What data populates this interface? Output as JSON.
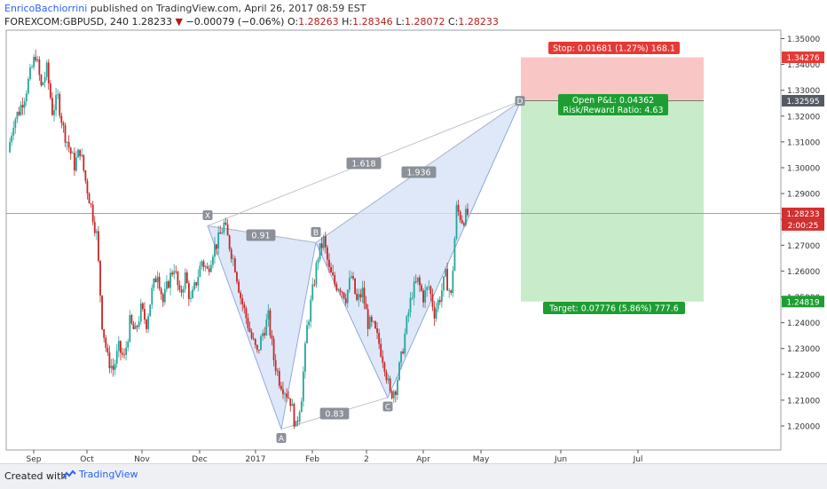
{
  "header": {
    "author": "EnricoBachiorrini",
    "published_text": "published on TradingView.com, April 26, 2017 08:59 EST",
    "symbol": "FOREXCOM:GBPUSD, 240",
    "last_price": "1.28233",
    "change": "−0.00079 (−0.06%)",
    "open_label": "O:",
    "open": "1.28263",
    "high_label": "H:",
    "high": "1.28346",
    "low_label": "L:",
    "low": "1.28072",
    "close_label": "C:",
    "close": "1.28233"
  },
  "footer": {
    "created_with": "Created with",
    "brand": "TradingView"
  },
  "colors": {
    "up": "#26a69a",
    "down": "#c62828",
    "pattern_fill": "#d6e2f7",
    "pattern_line": "#8fa9dc",
    "stop_zone": "#f9c6c6",
    "target_zone": "#c8ecc9",
    "stop_label_bg": "#e53935",
    "target_label_bg": "#1e9e32",
    "price_line": "#e57373"
  },
  "chart_data": {
    "type": "candlestick",
    "price_axis_ticks": [
      "1.35000",
      "1.34000",
      "1.33000",
      "1.32000",
      "1.31000",
      "1.30000",
      "1.29000",
      "1.28000",
      "1.27000",
      "1.26000",
      "1.25000",
      "1.24000",
      "1.23000",
      "1.22000",
      "1.21000",
      "1.20000"
    ],
    "ylim": [
      1.192,
      1.352
    ],
    "time_axis_ticks": [
      "Sep",
      "Oct",
      "Nov",
      "Dec",
      "2017",
      "Feb",
      "2",
      "Apr",
      "May",
      "Jun",
      "Jul"
    ],
    "price_tags": {
      "stop": "1.34276",
      "entry": "1.32595",
      "last": "1.28233",
      "countdown": "2:00:25",
      "target": "1.24819"
    },
    "pattern": {
      "name": "harmonic XABCD",
      "points": [
        {
          "label": "X",
          "price": 1.2775
        },
        {
          "label": "A",
          "price": 1.1988
        },
        {
          "label": "B",
          "price": 1.271
        },
        {
          "label": "C",
          "price": 1.211
        },
        {
          "label": "D",
          "price": 1.3259
        }
      ],
      "ratios": [
        {
          "text": "0.91",
          "between": "XA-AB"
        },
        {
          "text": "0.83",
          "between": "AB-BC"
        },
        {
          "text": "1.618",
          "between": "XA-XD"
        },
        {
          "text": "1.936",
          "between": "BC-BD"
        }
      ]
    },
    "position": {
      "stop_label": "Stop: 0.01681 (1.27%) 168.1",
      "pnl_label": "Open P&L: 0.04362",
      "rr_label": "Risk/Reward Ratio: 4.63",
      "target_label": "Target: 0.07776 (5.86%) 777.6",
      "stop_price": 1.34276,
      "entry_price": 1.32595,
      "target_price": 1.24819
    },
    "price_path": [
      [
        0,
        1.306
      ],
      [
        1,
        1.318
      ],
      [
        2,
        1.322
      ],
      [
        3,
        1.328
      ],
      [
        4,
        1.336
      ],
      [
        5,
        1.344
      ],
      [
        6,
        1.331
      ],
      [
        7,
        1.338
      ],
      [
        8,
        1.322
      ],
      [
        9,
        1.327
      ],
      [
        10,
        1.315
      ],
      [
        11,
        1.308
      ],
      [
        12,
        1.301
      ],
      [
        13,
        1.307
      ],
      [
        14,
        1.295
      ],
      [
        15,
        1.285
      ],
      [
        16,
        1.274
      ],
      [
        17,
        1.24
      ],
      [
        18,
        1.226
      ],
      [
        19,
        1.222
      ],
      [
        20,
        1.23
      ],
      [
        21,
        1.226
      ],
      [
        22,
        1.24
      ],
      [
        23,
        1.236
      ],
      [
        24,
        1.245
      ],
      [
        25,
        1.24
      ],
      [
        26,
        1.252
      ],
      [
        27,
        1.26
      ],
      [
        28,
        1.248
      ],
      [
        29,
        1.256
      ],
      [
        30,
        1.262
      ],
      [
        31,
        1.25
      ],
      [
        32,
        1.258
      ],
      [
        33,
        1.248
      ],
      [
        34,
        1.256
      ],
      [
        35,
        1.264
      ],
      [
        36,
        1.26
      ],
      [
        37,
        1.268
      ],
      [
        38,
        1.272
      ],
      [
        39,
        1.278
      ],
      [
        40,
        1.27
      ],
      [
        41,
        1.262
      ],
      [
        42,
        1.25
      ],
      [
        43,
        1.242
      ],
      [
        44,
        1.234
      ],
      [
        45,
        1.228
      ],
      [
        46,
        1.236
      ],
      [
        47,
        1.242
      ],
      [
        48,
        1.226
      ],
      [
        49,
        1.218
      ],
      [
        50,
        1.214
      ],
      [
        51,
        1.21
      ],
      [
        52,
        1.199
      ],
      [
        53,
        1.212
      ],
      [
        54,
        1.238
      ],
      [
        55,
        1.252
      ],
      [
        56,
        1.266
      ],
      [
        57,
        1.272
      ],
      [
        58,
        1.26
      ],
      [
        59,
        1.255
      ],
      [
        60,
        1.254
      ],
      [
        61,
        1.25
      ],
      [
        62,
        1.258
      ],
      [
        63,
        1.248
      ],
      [
        64,
        1.252
      ],
      [
        65,
        1.24
      ],
      [
        66,
        1.238
      ],
      [
        67,
        1.232
      ],
      [
        68,
        1.224
      ],
      [
        69,
        1.212
      ],
      [
        70,
        1.215
      ],
      [
        71,
        1.226
      ],
      [
        72,
        1.24
      ],
      [
        73,
        1.252
      ],
      [
        74,
        1.256
      ],
      [
        75,
        1.25
      ],
      [
        76,
        1.254
      ],
      [
        77,
        1.244
      ],
      [
        78,
        1.25
      ],
      [
        79,
        1.258
      ],
      [
        80,
        1.25
      ],
      [
        81,
        1.284
      ],
      [
        82,
        1.28
      ],
      [
        83,
        1.282
      ]
    ]
  }
}
